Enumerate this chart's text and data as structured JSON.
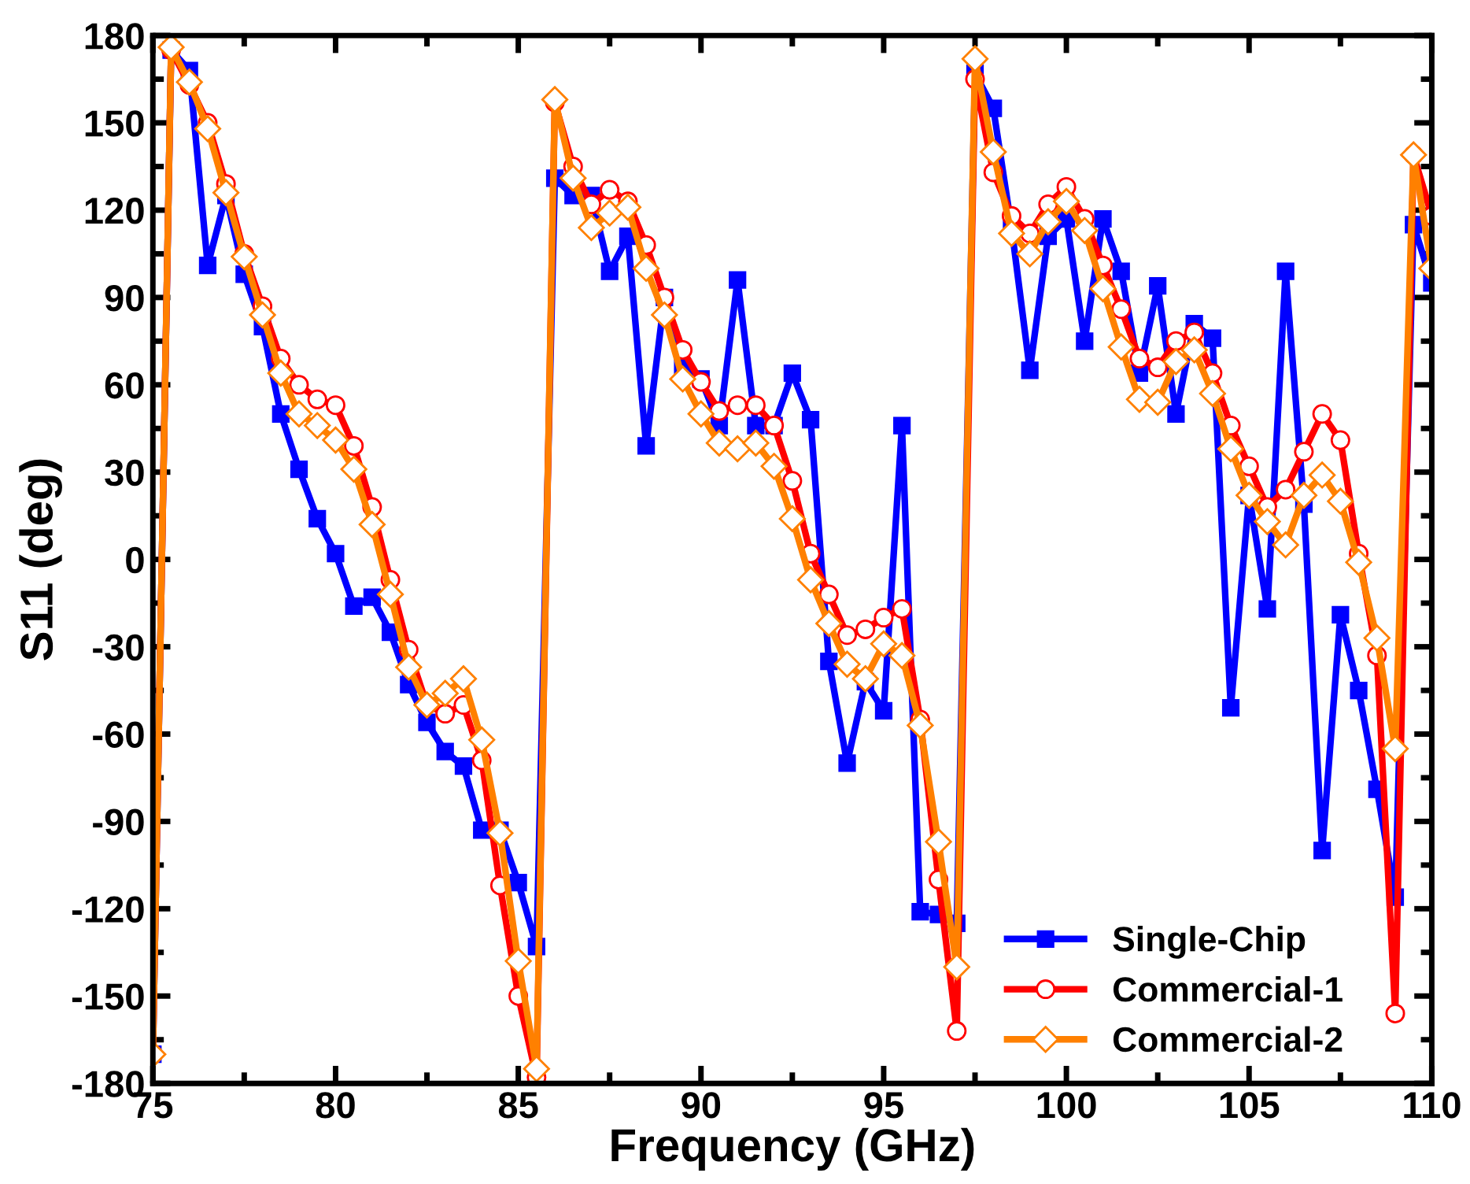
{
  "chart_data": {
    "type": "line",
    "xlabel": "Frequency (GHz)",
    "ylabel": "S11 (deg)",
    "x": [
      75,
      75.5,
      76,
      76.5,
      77,
      77.5,
      78,
      78.5,
      79,
      79.5,
      80,
      80.5,
      81,
      81.5,
      82,
      82.5,
      83,
      83.5,
      84,
      84.5,
      85,
      85.5,
      86,
      86.5,
      87,
      87.5,
      88,
      88.5,
      89,
      89.5,
      90,
      90.5,
      91,
      91.5,
      92,
      92.5,
      93,
      93.5,
      94,
      94.5,
      95,
      95.5,
      96,
      96.5,
      97,
      97.5,
      98,
      98.5,
      99,
      99.5,
      100,
      100.5,
      101,
      101.5,
      102,
      102.5,
      103,
      103.5,
      104,
      104.5,
      105,
      105.5,
      106,
      106.5,
      107,
      107.5,
      108,
      108.5,
      109,
      109.5,
      110
    ],
    "series": [
      {
        "name": "Single-Chip",
        "color": "#0000ff",
        "marker": "square",
        "values": [
          -170,
          175,
          168,
          101,
          125,
          98,
          80,
          50,
          31,
          14,
          2,
          -16,
          -13,
          -25,
          -43,
          -56,
          -66,
          -71,
          -93,
          -93,
          -111,
          -133,
          131,
          125,
          125,
          99,
          111,
          39,
          90,
          66,
          62,
          46,
          96,
          46,
          46,
          64,
          48,
          -35,
          -70,
          -42,
          -52,
          46,
          -121,
          -122,
          -125,
          167,
          155,
          114,
          65,
          111,
          117,
          75,
          117,
          99,
          64,
          94,
          50,
          81,
          76,
          -51,
          22,
          -17,
          99,
          19,
          -100,
          -19,
          -45,
          -79,
          -116,
          115,
          95
        ]
      },
      {
        "name": "Commercial-1",
        "color": "#ff0000",
        "marker": "circle",
        "values": [
          -170,
          175,
          163,
          150,
          129,
          105,
          87,
          69,
          60,
          55,
          53,
          39,
          18,
          -7,
          -31,
          -50,
          -53,
          -50,
          -69,
          -112,
          -150,
          -178,
          157,
          135,
          122,
          127,
          123,
          108,
          90,
          72,
          61,
          51,
          53,
          53,
          46,
          27,
          2,
          -12,
          -26,
          -24,
          -20,
          -17,
          -55,
          -110,
          -162,
          165,
          133,
          118,
          112,
          122,
          128,
          117,
          101,
          86,
          69,
          66,
          75,
          78,
          64,
          46,
          32,
          18,
          24,
          37,
          50,
          41,
          2,
          -33,
          -156,
          139,
          118
        ]
      },
      {
        "name": "Commercial-2",
        "color": "#ff8000",
        "marker": "diamond",
        "values": [
          -170,
          176,
          164,
          148,
          126,
          104,
          84,
          64,
          50,
          46,
          41,
          31,
          12,
          -12,
          -37,
          -50,
          -46,
          -41,
          -62,
          -94,
          -138,
          -175,
          158,
          131,
          114,
          119,
          121,
          100,
          84,
          62,
          50,
          40,
          38,
          40,
          32,
          14,
          -7,
          -22,
          -36,
          -41,
          -29,
          -33,
          -57,
          -97,
          -140,
          172,
          140,
          112,
          105,
          116,
          123,
          113,
          93,
          73,
          55,
          54,
          68,
          72,
          57,
          38,
          22,
          13,
          5,
          22,
          29,
          20,
          -1,
          -27,
          -65,
          139,
          100
        ]
      }
    ],
    "xlim": [
      75,
      110
    ],
    "xticks": [
      75,
      80,
      85,
      90,
      95,
      100,
      105,
      110
    ],
    "ylim": [
      -180,
      180
    ],
    "yticks": [
      -180,
      -150,
      -120,
      -90,
      -60,
      -30,
      0,
      30,
      60,
      90,
      120,
      150,
      180
    ],
    "grid": false,
    "legend": "bottom right",
    "line_style": "solid"
  }
}
